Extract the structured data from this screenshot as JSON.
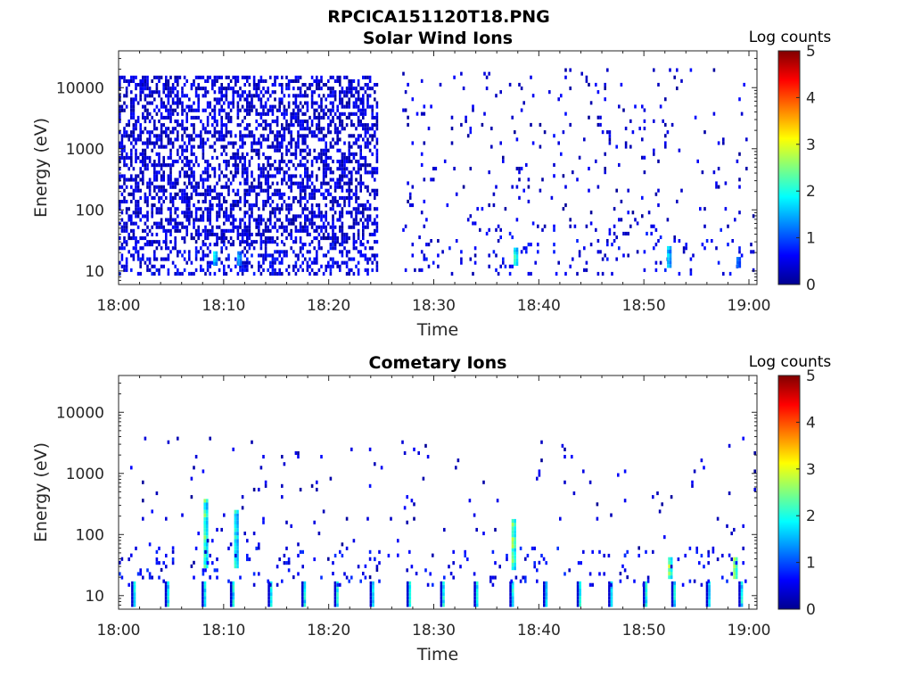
{
  "figure": {
    "title": "RPCICA151120T18.PNG"
  },
  "colormap": {
    "name": "jet",
    "colorbar_label": "Log counts",
    "range": [
      0,
      5
    ],
    "ticks": [
      "0",
      "1",
      "2",
      "3",
      "4",
      "5"
    ]
  },
  "chart_data": [
    {
      "type": "heatmap",
      "title": "Solar Wind Ions",
      "xlabel": "Time",
      "ylabel": "Energy (eV)",
      "x_scale": "time",
      "y_scale": "log",
      "xlim": [
        "18:00",
        "19:00"
      ],
      "ylim": [
        6,
        40000
      ],
      "x_ticks": [
        "18:00",
        "18:10",
        "18:20",
        "18:30",
        "18:40",
        "18:50",
        "19:00"
      ],
      "y_ticks": [
        "10",
        "100",
        "1000",
        "10000"
      ],
      "colorbar": "Log counts",
      "clim": [
        0,
        5
      ],
      "features": [
        {
          "type": "scatter",
          "t0_min": 0,
          "t1_min": 24.5,
          "e0": 30,
          "e1": 15000,
          "density": 0.48,
          "value": 0.1
        },
        {
          "type": "scatter",
          "t0_min": 0,
          "t1_min": 24.5,
          "e0": 9,
          "e1": 30,
          "density": 0.35,
          "value": 0.2
        },
        {
          "type": "scatter",
          "t0_min": 27,
          "t1_min": 60.5,
          "e0": 60,
          "e1": 20000,
          "density": 0.035,
          "value": 0.1
        },
        {
          "type": "scatter",
          "t0_min": 27,
          "t1_min": 60.5,
          "e0": 9,
          "e1": 60,
          "density": 0.08,
          "value": 0.2
        },
        {
          "type": "streak",
          "t_min": 37.6,
          "e0": 13,
          "e1": 25,
          "value": 2.0
        },
        {
          "type": "streak",
          "t_min": 9.0,
          "e0": 13,
          "e1": 22,
          "value": 1.6
        },
        {
          "type": "streak",
          "t_min": 11.3,
          "e0": 13,
          "e1": 20,
          "value": 1.5
        },
        {
          "type": "streak",
          "t_min": 52.2,
          "e0": 12,
          "e1": 24,
          "value": 1.6
        },
        {
          "type": "streak",
          "t_min": 58.8,
          "e0": 12,
          "e1": 18,
          "value": 1.3
        }
      ]
    },
    {
      "type": "heatmap",
      "title": "Cometary Ions",
      "xlabel": "Time",
      "ylabel": "Energy (eV)",
      "x_scale": "time",
      "y_scale": "log",
      "xlim": [
        "18:00",
        "19:00"
      ],
      "ylim": [
        6,
        40000
      ],
      "x_ticks": [
        "18:00",
        "18:10",
        "18:20",
        "18:30",
        "18:40",
        "18:50",
        "19:00"
      ],
      "y_ticks": [
        "10",
        "100",
        "1000",
        "10000"
      ],
      "colorbar": "Log counts",
      "clim": [
        0,
        5
      ],
      "features": [
        {
          "type": "pulses",
          "times_min": [
            1.2,
            4.4,
            7.9,
            10.6,
            14.2,
            17.4,
            20.5,
            23.9,
            27.4,
            30.6,
            33.8,
            37.2,
            40.4,
            43.6,
            46.6,
            49.9,
            52.6,
            55.9,
            59.0
          ],
          "e0": 7,
          "e1": 18,
          "value": 1.8
        },
        {
          "type": "streak",
          "t_min": 8.1,
          "e0": 30,
          "e1": 380,
          "value": 2.2
        },
        {
          "type": "streak",
          "t_min": 11.0,
          "e0": 30,
          "e1": 260,
          "value": 2.0
        },
        {
          "type": "streak",
          "t_min": 37.4,
          "e0": 28,
          "e1": 180,
          "value": 2.4
        },
        {
          "type": "streak",
          "t_min": 52.3,
          "e0": 20,
          "e1": 45,
          "value": 2.6
        },
        {
          "type": "streak",
          "t_min": 58.5,
          "e0": 20,
          "e1": 40,
          "value": 2.4
        },
        {
          "type": "scatter",
          "t0_min": 0,
          "t1_min": 60.5,
          "e0": 20,
          "e1": 4000,
          "density": 0.015,
          "value": 0.1
        },
        {
          "type": "scatter",
          "t0_min": 0,
          "t1_min": 60.5,
          "e0": 15,
          "e1": 60,
          "density": 0.05,
          "value": 0.3
        }
      ]
    }
  ]
}
